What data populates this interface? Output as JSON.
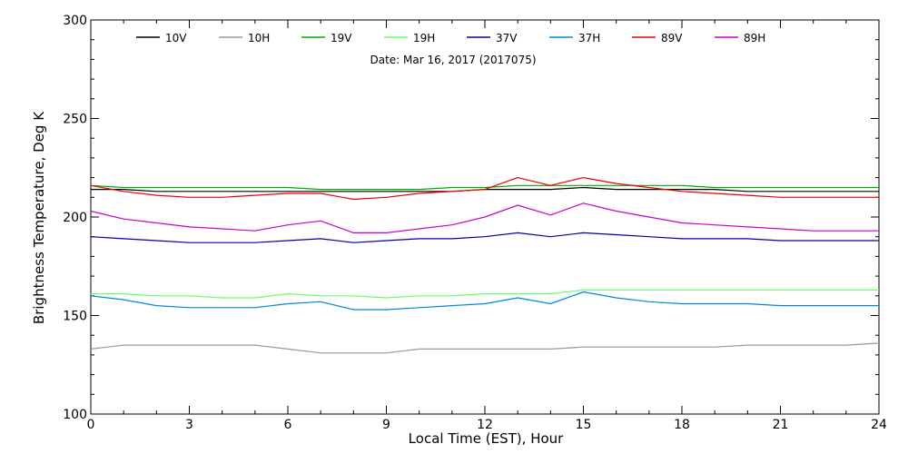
{
  "chart_data": {
    "type": "line",
    "title": "",
    "subtitle": "Date: Mar 16, 2017 (2017075)",
    "xlabel": "Local Time (EST), Hour",
    "ylabel": "Brightness Temperature, Deg K",
    "xlim": [
      0,
      24
    ],
    "ylim": [
      100,
      300
    ],
    "x_ticks": [
      0,
      3,
      6,
      9,
      12,
      15,
      18,
      21,
      24
    ],
    "y_ticks": [
      100,
      150,
      200,
      250,
      300
    ],
    "grid": false,
    "legend_position": "top",
    "x": [
      0,
      1,
      2,
      3,
      4,
      5,
      6,
      7,
      8,
      9,
      10,
      11,
      12,
      13,
      14,
      15,
      16,
      17,
      18,
      19,
      20,
      21,
      22,
      23,
      24
    ],
    "series": [
      {
        "name": "10V",
        "color": "#000000",
        "values": [
          214,
          214,
          213,
          213,
          213,
          213,
          213,
          213,
          213,
          213,
          213,
          213,
          214,
          214,
          214,
          215,
          214,
          214,
          214,
          214,
          213,
          213,
          213,
          213,
          213
        ]
      },
      {
        "name": "10H",
        "color": "#999999",
        "values": [
          133,
          135,
          135,
          135,
          135,
          135,
          133,
          131,
          131,
          131,
          133,
          133,
          133,
          133,
          133,
          134,
          134,
          134,
          134,
          134,
          135,
          135,
          135,
          135,
          136
        ]
      },
      {
        "name": "19V",
        "color": "#00aa00",
        "values": [
          216,
          215,
          215,
          215,
          215,
          215,
          215,
          214,
          214,
          214,
          214,
          215,
          215,
          216,
          216,
          216,
          216,
          216,
          216,
          215,
          215,
          215,
          215,
          215,
          215
        ]
      },
      {
        "name": "19H",
        "color": "#66ff66",
        "values": [
          161,
          161,
          160,
          160,
          159,
          159,
          161,
          160,
          160,
          159,
          160,
          160,
          161,
          161,
          161,
          163,
          163,
          163,
          163,
          163,
          163,
          163,
          163,
          163,
          163
        ]
      },
      {
        "name": "37V",
        "color": "#0000aa",
        "values": [
          190,
          189,
          188,
          187,
          187,
          187,
          188,
          189,
          187,
          188,
          189,
          189,
          190,
          192,
          190,
          192,
          191,
          190,
          189,
          189,
          189,
          188,
          188,
          188,
          188
        ]
      },
      {
        "name": "37H",
        "color": "#0088dd",
        "values": [
          160,
          158,
          155,
          154,
          154,
          154,
          156,
          157,
          153,
          153,
          154,
          155,
          156,
          159,
          156,
          162,
          159,
          157,
          156,
          156,
          156,
          155,
          155,
          155,
          155
        ]
      },
      {
        "name": "89V",
        "color": "#ee0000",
        "values": [
          216,
          213,
          211,
          210,
          210,
          211,
          212,
          212,
          209,
          210,
          212,
          213,
          214,
          220,
          216,
          220,
          217,
          215,
          213,
          212,
          211,
          210,
          210,
          210,
          210
        ]
      },
      {
        "name": "89H",
        "color": "#cc00cc",
        "values": [
          203,
          199,
          197,
          195,
          194,
          193,
          196,
          198,
          192,
          192,
          194,
          196,
          200,
          206,
          201,
          207,
          203,
          200,
          197,
          196,
          195,
          194,
          193,
          193,
          193
        ]
      }
    ]
  }
}
